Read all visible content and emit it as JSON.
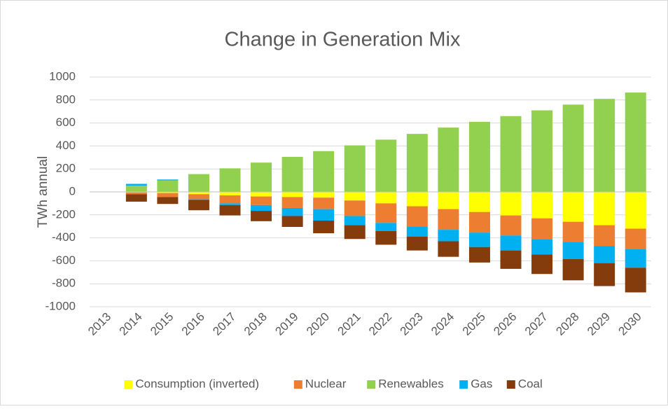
{
  "chart_data": {
    "type": "bar",
    "stacked": true,
    "title": "Change in Generation Mix",
    "y_label": "TWh annual",
    "categories": [
      "2013",
      "2014",
      "2015",
      "2016",
      "2017",
      "2018",
      "2019",
      "2020",
      "2021",
      "2022",
      "2023",
      "2024",
      "2025",
      "2026",
      "2027",
      "2028",
      "2029",
      "2030"
    ],
    "series": [
      {
        "name": "Consumption (inverted)",
        "color": "#ffff00",
        "values": [
          0,
          -5,
          -10,
          -20,
          -30,
          -40,
          -45,
          -50,
          -75,
          -100,
          -125,
          -150,
          -175,
          -205,
          -230,
          -260,
          -290,
          -320
        ]
      },
      {
        "name": "Nuclear",
        "color": "#ed7d31",
        "values": [
          0,
          -15,
          -35,
          -45,
          -70,
          -75,
          -95,
          -100,
          -135,
          -170,
          -175,
          -180,
          -180,
          -175,
          -180,
          -175,
          -180,
          -180
        ]
      },
      {
        "name": "Renewables",
        "color": "#92d050",
        "values": [
          0,
          55,
          100,
          155,
          205,
          255,
          305,
          355,
          405,
          455,
          505,
          560,
          610,
          660,
          710,
          760,
          810,
          865
        ]
      },
      {
        "name": "Gas",
        "color": "#00b0f0",
        "values": [
          0,
          15,
          8,
          -5,
          -15,
          -50,
          -70,
          -100,
          -80,
          -70,
          -90,
          -100,
          -125,
          -130,
          -135,
          -150,
          -150,
          -160
        ]
      },
      {
        "name": "Coal",
        "color": "#843c0c",
        "values": [
          0,
          -65,
          -60,
          -90,
          -90,
          -90,
          -95,
          -110,
          -120,
          -120,
          -120,
          -135,
          -135,
          -160,
          -170,
          -185,
          -200,
          -215
        ]
      }
    ],
    "ylim": [
      -1000,
      1000
    ],
    "yticks": [
      -1000,
      -800,
      -600,
      -400,
      -200,
      0,
      200,
      400,
      600,
      800,
      1000
    ],
    "grid": true,
    "legend": "bottom"
  }
}
